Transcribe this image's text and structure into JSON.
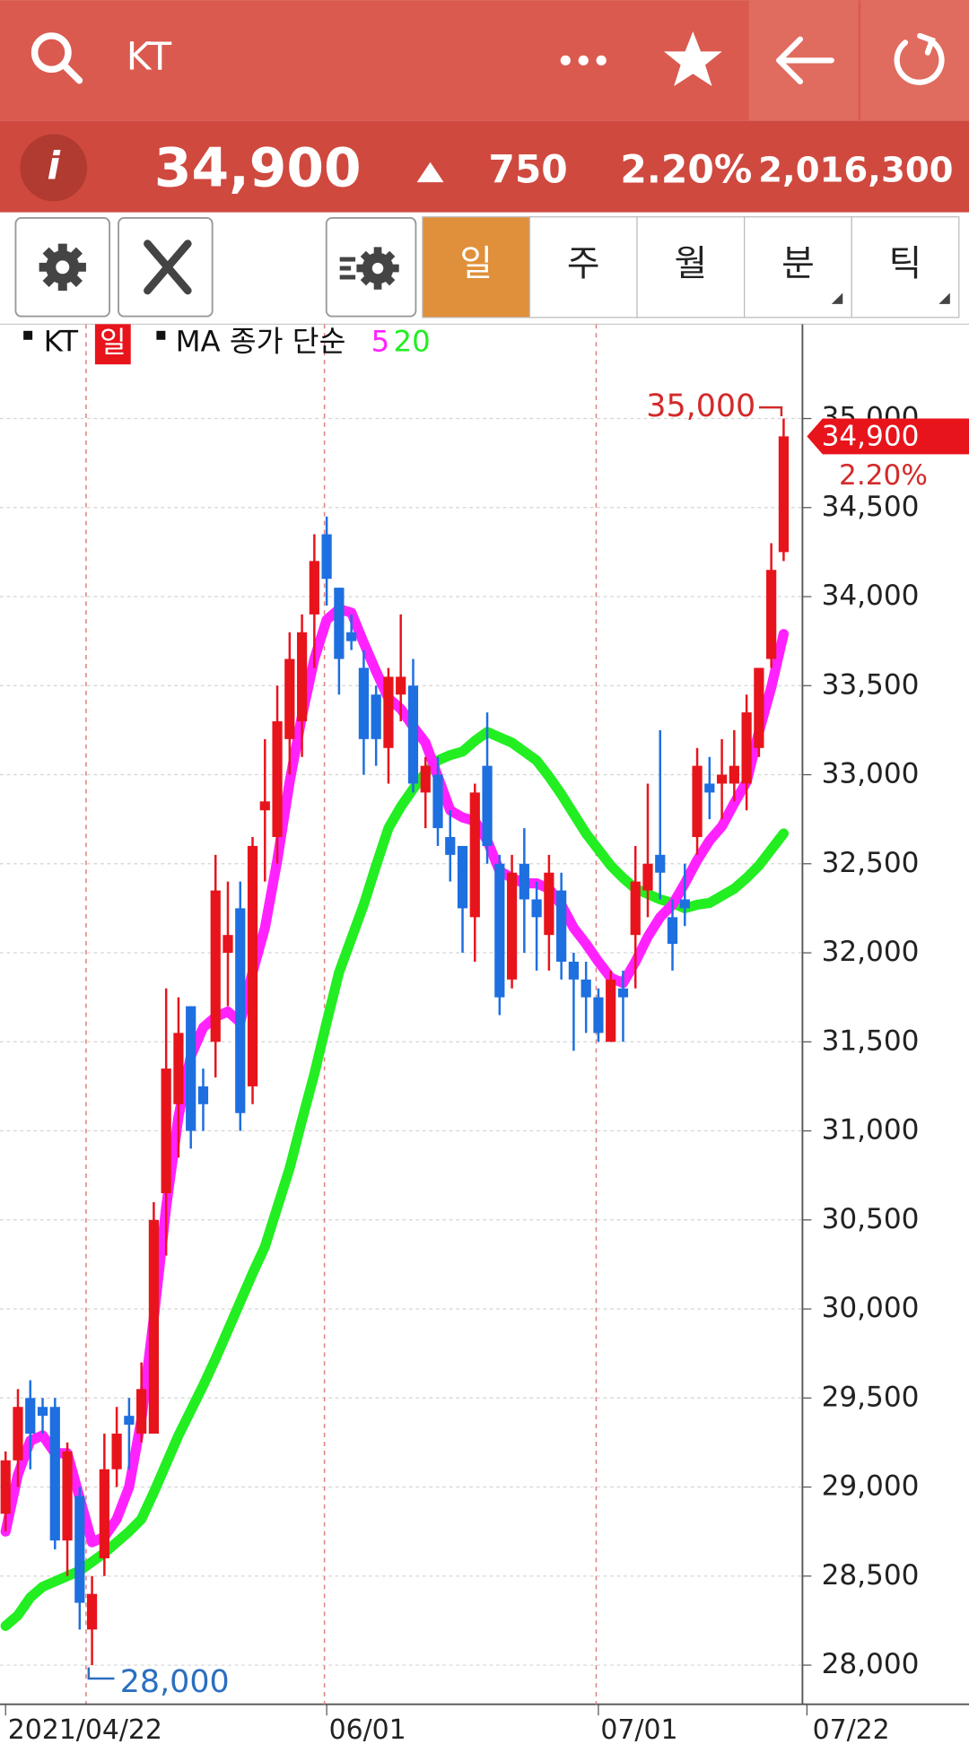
{
  "header": {
    "title": "KT"
  },
  "quote": {
    "price": "34,900",
    "change": "750",
    "change_pct": "2.20%",
    "volume": "2,016,300"
  },
  "tabs": [
    "일",
    "주",
    "월",
    "분",
    "틱"
  ],
  "chart_data": {
    "type": "candlestick",
    "legend": {
      "symbol": "KT",
      "period": "일",
      "ma_label": "MA 종가 단순"
    },
    "categories": [
      "2021/04/22",
      null,
      null,
      null,
      null,
      null,
      null,
      null,
      null,
      null,
      null,
      null,
      null,
      null,
      null,
      null,
      null,
      null,
      null,
      null,
      null,
      null,
      null,
      null,
      null,
      null,
      "06/01",
      null,
      null,
      null,
      null,
      null,
      null,
      null,
      null,
      null,
      null,
      null,
      null,
      null,
      null,
      null,
      null,
      null,
      null,
      null,
      null,
      null,
      "07/01",
      null,
      null,
      null,
      null,
      null,
      null,
      null,
      null,
      null,
      null,
      null,
      null,
      null,
      null,
      null
    ],
    "xaxis_end_label": "07/22",
    "open": [
      28850,
      29150,
      29500,
      29450,
      29450,
      28700,
      28950,
      28200,
      28600,
      29100,
      29400,
      29300,
      29300,
      30650,
      31150,
      31700,
      31250,
      31500,
      32000,
      32250,
      31250,
      32800,
      32650,
      33200,
      33300,
      33900,
      34350,
      34050,
      33800,
      33600,
      33450,
      33150,
      33450,
      33500,
      32900,
      33000,
      32650,
      32600,
      32200,
      33050,
      32500,
      31850,
      32500,
      32300,
      32100,
      32350,
      31950,
      31850,
      31750,
      31500,
      31800,
      32100,
      32350,
      32550,
      32200,
      32300,
      32650,
      32950,
      32950,
      32950,
      32950,
      33150,
      33650,
      34250
    ],
    "high": [
      29200,
      29550,
      29600,
      29500,
      29500,
      29250,
      29000,
      28500,
      29300,
      29450,
      29500,
      29700,
      30600,
      31800,
      31750,
      31700,
      31350,
      32550,
      32400,
      32400,
      32650,
      33200,
      33500,
      33800,
      33900,
      34350,
      34450,
      34050,
      33900,
      33700,
      33500,
      33600,
      33900,
      33650,
      33100,
      33100,
      32800,
      32600,
      32950,
      33350,
      32550,
      32550,
      32700,
      32400,
      32550,
      32450,
      32000,
      31950,
      31800,
      31900,
      31900,
      32600,
      32950,
      33250,
      32300,
      32500,
      33150,
      33100,
      33200,
      33250,
      33450,
      33600,
      34300,
      35000
    ],
    "low": [
      28750,
      29000,
      29100,
      29300,
      28650,
      28500,
      28200,
      28000,
      28500,
      29000,
      29100,
      29250,
      29300,
      30300,
      30850,
      30900,
      31000,
      31300,
      31700,
      31000,
      31150,
      32400,
      32500,
      33000,
      33100,
      33600,
      33950,
      33450,
      33700,
      33000,
      33050,
      32950,
      33300,
      32900,
      32700,
      32600,
      32400,
      32000,
      31950,
      32500,
      31650,
      31800,
      32000,
      31900,
      31900,
      31850,
      31450,
      31550,
      31500,
      31500,
      31500,
      31800,
      32200,
      32300,
      31900,
      32150,
      32550,
      32750,
      32750,
      32850,
      32800,
      33100,
      33600,
      34200
    ],
    "close": [
      29150,
      29450,
      29300,
      29400,
      28700,
      29200,
      28350,
      28400,
      29100,
      29300,
      29350,
      29550,
      30500,
      31350,
      31550,
      31000,
      31150,
      32350,
      32100,
      31100,
      32600,
      32850,
      33300,
      33650,
      33800,
      34200,
      34100,
      33650,
      33750,
      33200,
      33200,
      33550,
      33550,
      32950,
      33050,
      32700,
      32550,
      32250,
      32900,
      32600,
      31750,
      32450,
      32300,
      32200,
      32450,
      31950,
      31850,
      31750,
      31550,
      31850,
      31750,
      32400,
      32500,
      32450,
      32050,
      32250,
      33050,
      32900,
      33000,
      33050,
      33350,
      33600,
      34150,
      34900
    ],
    "up_color": "#e8141c",
    "down_color": "#1e6fe0",
    "series": [
      {
        "name": "5",
        "color": "#ff22ff",
        "values": [
          28750,
          29070,
          29260,
          29290,
          29190,
          29190,
          28940,
          28690,
          28720,
          28820,
          29000,
          29380,
          29950,
          30570,
          31080,
          31420,
          31580,
          31640,
          31670,
          31610,
          31890,
          32140,
          32520,
          32960,
          33330,
          33650,
          33870,
          33930,
          33910,
          33740,
          33580,
          33430,
          33370,
          33270,
          33180,
          32990,
          32800,
          32760,
          32740,
          32630,
          32460,
          32420,
          32390,
          32390,
          32360,
          32270,
          32140,
          32050,
          31950,
          31860,
          31830,
          31950,
          32090,
          32200,
          32270,
          32390,
          32520,
          32630,
          32710,
          32840,
          32960,
          33240,
          33490,
          33790
        ]
      },
      {
        "name": "20",
        "color": "#22ee22",
        "values": [
          28220,
          28280,
          28380,
          28440,
          28470,
          28500,
          28530,
          28580,
          28630,
          28690,
          28750,
          28820,
          28970,
          29130,
          29290,
          29430,
          29570,
          29720,
          29880,
          30040,
          30200,
          30350,
          30570,
          30790,
          31060,
          31320,
          31610,
          31890,
          32080,
          32270,
          32490,
          32700,
          32820,
          32920,
          33010,
          33080,
          33110,
          33130,
          33190,
          33240,
          33210,
          33180,
          33130,
          33080,
          32990,
          32890,
          32780,
          32670,
          32580,
          32490,
          32420,
          32360,
          32330,
          32300,
          32280,
          32250,
          32270,
          32280,
          32320,
          32360,
          32420,
          32490,
          32580,
          32670
        ]
      }
    ],
    "ylim": [
      27780,
      35530
    ],
    "yticks": [
      {
        "value": 28000,
        "label": "28,000"
      },
      {
        "value": 28500,
        "label": "28,500"
      },
      {
        "value": 29000,
        "label": "29,000"
      },
      {
        "value": 29500,
        "label": "29,500"
      },
      {
        "value": 30000,
        "label": "30,000"
      },
      {
        "value": 30500,
        "label": "30,500"
      },
      {
        "value": 31000,
        "label": "31,000"
      },
      {
        "value": 31500,
        "label": "31,500"
      },
      {
        "value": 32000,
        "label": "32,000"
      },
      {
        "value": 32500,
        "label": "32,500"
      },
      {
        "value": 33000,
        "label": "33,000"
      },
      {
        "value": 33500,
        "label": "33,500"
      },
      {
        "value": 34000,
        "label": "34,000"
      },
      {
        "value": 34500,
        "label": "34,500"
      },
      {
        "value": 35000,
        "label": "35,000"
      }
    ],
    "annotations": [
      {
        "value": 35000,
        "label": "35,000",
        "color": "#d42a2a"
      },
      {
        "value": 28000,
        "label": "28,000",
        "color": "#2a6fc0"
      }
    ],
    "last_price": {
      "value": 34900,
      "label": "34,900",
      "change_label": "2.20%"
    },
    "grid": true
  }
}
